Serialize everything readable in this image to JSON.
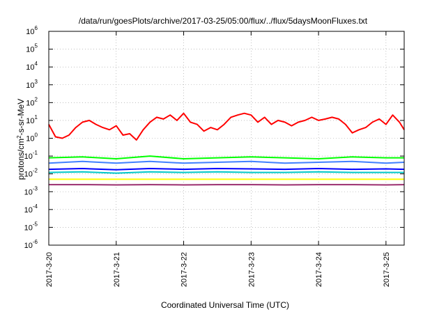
{
  "chart_data": {
    "type": "line",
    "title": "/data/run/goesPlots/archive/2017-03-25/05:00/flux/../flux/5daysMoonFluxes.txt",
    "xlabel": "Coordinated Universal Time (UTC)",
    "ylabel_prefix": "protons/cm",
    "ylabel_sup": "2",
    "ylabel_suffix": "-s-sr-MeV",
    "yscale": "log",
    "ylim": [
      1e-06,
      1000000.0
    ],
    "xlim": [
      0,
      5.27
    ],
    "x_ticks": [
      {
        "x": 0,
        "label": "2017-3-20"
      },
      {
        "x": 1,
        "label": "2017-3-21"
      },
      {
        "x": 2,
        "label": "2017-3-22"
      },
      {
        "x": 3,
        "label": "2017-3-23"
      },
      {
        "x": 4,
        "label": "2017-3-24"
      },
      {
        "x": 5,
        "label": "2017-3-25"
      }
    ],
    "y_ticks": [
      {
        "exp": -6,
        "label": "10",
        "sup": "-6"
      },
      {
        "exp": -5,
        "label": "10",
        "sup": "-5"
      },
      {
        "exp": -4,
        "label": "10",
        "sup": "-4"
      },
      {
        "exp": -3,
        "label": "10",
        "sup": "-3"
      },
      {
        "exp": -2,
        "label": "10",
        "sup": "-2"
      },
      {
        "exp": -1,
        "label": "10",
        "sup": "-1"
      },
      {
        "exp": 0,
        "label": "10",
        "sup": "0"
      },
      {
        "exp": 1,
        "label": "10",
        "sup": "1"
      },
      {
        "exp": 2,
        "label": "10",
        "sup": "2"
      },
      {
        "exp": 3,
        "label": "10",
        "sup": "3"
      },
      {
        "exp": 4,
        "label": "10",
        "sup": "4"
      },
      {
        "exp": 5,
        "label": "10",
        "sup": "5"
      },
      {
        "exp": 6,
        "label": "10",
        "sup": "6"
      }
    ],
    "grid": true,
    "legend": "none",
    "series": [
      {
        "color": "#ff0000",
        "x": [
          0,
          0.1,
          0.2,
          0.3,
          0.4,
          0.5,
          0.6,
          0.7,
          0.8,
          0.9,
          1.0,
          1.1,
          1.2,
          1.3,
          1.4,
          1.5,
          1.6,
          1.7,
          1.8,
          1.9,
          2.0,
          2.1,
          2.2,
          2.3,
          2.4,
          2.5,
          2.6,
          2.7,
          2.8,
          2.9,
          3.0,
          3.1,
          3.2,
          3.3,
          3.4,
          3.5,
          3.6,
          3.7,
          3.8,
          3.9,
          4.0,
          4.1,
          4.2,
          4.3,
          4.4,
          4.5,
          4.6,
          4.7,
          4.8,
          4.9,
          5.0,
          5.1,
          5.2,
          5.27
        ],
        "y": [
          6,
          1.2,
          1,
          1.5,
          4,
          8,
          10,
          6,
          4,
          3,
          5,
          1.5,
          1.8,
          0.8,
          3,
          8,
          15,
          12,
          20,
          10,
          25,
          8,
          6,
          2.5,
          4,
          3,
          6,
          15,
          20,
          25,
          20,
          8,
          15,
          6,
          10,
          8,
          5,
          8,
          10,
          15,
          10,
          12,
          15,
          12,
          6,
          2,
          3,
          4,
          8,
          12,
          6,
          20,
          8,
          3
        ]
      },
      {
        "color": "#00ff00",
        "x": [
          0,
          0.5,
          1.0,
          1.5,
          2.0,
          2.5,
          3.0,
          3.5,
          4.0,
          4.5,
          5.0,
          5.27
        ],
        "y": [
          0.08,
          0.09,
          0.07,
          0.1,
          0.07,
          0.08,
          0.09,
          0.08,
          0.07,
          0.09,
          0.08,
          0.08
        ]
      },
      {
        "color": "#4080ff",
        "x": [
          0,
          0.5,
          1.0,
          1.5,
          2.0,
          2.5,
          3.0,
          3.5,
          4.0,
          4.5,
          5.0,
          5.27
        ],
        "y": [
          0.04,
          0.05,
          0.04,
          0.05,
          0.04,
          0.045,
          0.05,
          0.04,
          0.045,
          0.05,
          0.04,
          0.045
        ]
      },
      {
        "color": "#0000ff",
        "x": [
          0,
          0.5,
          1.0,
          1.5,
          2.0,
          2.5,
          3.0,
          3.5,
          4.0,
          4.5,
          5.0,
          5.27
        ],
        "y": [
          0.018,
          0.02,
          0.017,
          0.02,
          0.018,
          0.02,
          0.019,
          0.018,
          0.02,
          0.018,
          0.019,
          0.018
        ]
      },
      {
        "color": "#00c8c8",
        "x": [
          0,
          0.5,
          1.0,
          1.5,
          2.0,
          2.5,
          3.0,
          3.5,
          4.0,
          4.5,
          5.0,
          5.27
        ],
        "y": [
          0.012,
          0.013,
          0.011,
          0.013,
          0.012,
          0.013,
          0.012,
          0.012,
          0.013,
          0.012,
          0.012,
          0.012
        ]
      },
      {
        "color": "#ffff00",
        "x": [
          0,
          0.5,
          1.0,
          1.5,
          2.0,
          2.5,
          3.0,
          3.5,
          4.0,
          4.5,
          5.0,
          5.27
        ],
        "y": [
          0.005,
          0.005,
          0.005,
          0.005,
          0.005,
          0.005,
          0.005,
          0.005,
          0.005,
          0.005,
          0.005,
          0.005
        ]
      },
      {
        "color": "#9b2d6e",
        "x": [
          0,
          0.5,
          1.0,
          1.5,
          2.0,
          2.5,
          3.0,
          3.5,
          4.0,
          4.5,
          5.0,
          5.27
        ],
        "y": [
          0.0025,
          0.0025,
          0.0024,
          0.0025,
          0.0024,
          0.0025,
          0.0025,
          0.0024,
          0.0025,
          0.0025,
          0.0024,
          0.0025
        ]
      }
    ]
  }
}
